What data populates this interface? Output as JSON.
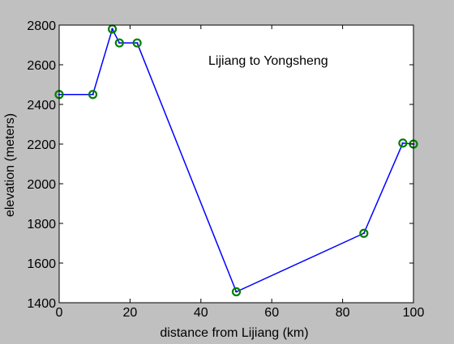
{
  "chart_data": {
    "type": "line",
    "annotation": "Lijiang to Yongsheng",
    "xlabel": "distance from Lijiang (km)",
    "ylabel": "elevation (meters)",
    "xlim": [
      0,
      100
    ],
    "ylim": [
      1400,
      2800
    ],
    "x_ticks": [
      0,
      20,
      40,
      60,
      80,
      100
    ],
    "y_ticks": [
      1400,
      1600,
      1800,
      2000,
      2200,
      2400,
      2600,
      2800
    ],
    "grid": false,
    "series": [
      {
        "x": [
          0,
          9.5,
          15,
          17,
          22,
          50,
          86,
          97,
          100
        ],
        "y": [
          2450,
          2450,
          2780,
          2710,
          2710,
          1455,
          1750,
          2205,
          2200
        ]
      }
    ],
    "colors": {
      "background": "#c0c0c0",
      "axes_background": "#ffffff",
      "line": "#0000ff",
      "marker": "#008000"
    }
  }
}
